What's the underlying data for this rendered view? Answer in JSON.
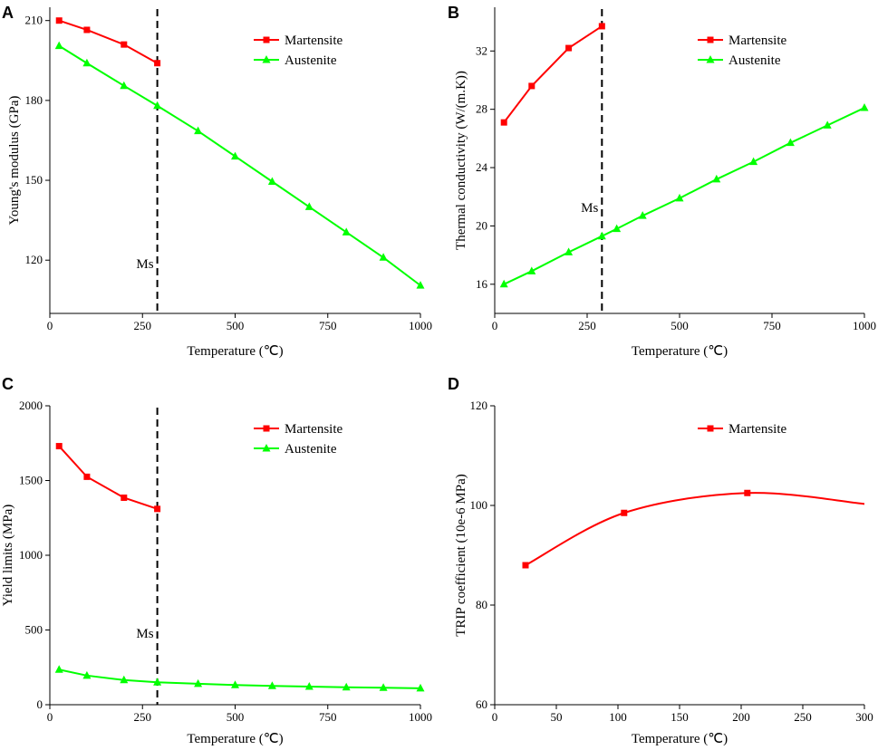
{
  "chart_data": [
    {
      "panel": "A",
      "type": "line",
      "xlabel": "Temperature (℃)",
      "ylabel": "Young's modulus (GPa)",
      "xlim": [
        0,
        1000
      ],
      "ylim": [
        100,
        215
      ],
      "xticks": [
        0,
        250,
        500,
        750,
        1000
      ],
      "yticks": [
        120,
        150,
        180,
        210
      ],
      "grid": false,
      "legend": "top-right",
      "marker_line": {
        "x": 290,
        "label": "Ms"
      },
      "series": [
        {
          "name": "Martensite",
          "color": "#ff0000",
          "marker": "square",
          "smooth": false,
          "x": [
            25,
            100,
            200,
            290
          ],
          "y": [
            210,
            206.5,
            201,
            194
          ]
        },
        {
          "name": "Austenite",
          "color": "#00ff00",
          "marker": "triangle",
          "smooth": false,
          "x": [
            25,
            100,
            200,
            290,
            400,
            500,
            600,
            700,
            800,
            900,
            1000
          ],
          "y": [
            200.5,
            194,
            185.5,
            178,
            168.5,
            159,
            149.5,
            140,
            130.5,
            121,
            110.5
          ]
        }
      ]
    },
    {
      "panel": "B",
      "type": "line",
      "xlabel": "Temperature (℃)",
      "ylabel": "Thermal conductivity (W/(m.K))",
      "xlim": [
        0,
        1000
      ],
      "ylim": [
        14,
        35
      ],
      "xticks": [
        0,
        250,
        500,
        750,
        1000
      ],
      "yticks": [
        16,
        20,
        24,
        28,
        32
      ],
      "grid": false,
      "legend": "top-right",
      "marker_line": {
        "x": 290,
        "label": "Ms"
      },
      "series": [
        {
          "name": "Martensite",
          "color": "#ff0000",
          "marker": "square",
          "smooth": false,
          "x": [
            25,
            100,
            200,
            290
          ],
          "y": [
            27.1,
            29.6,
            32.2,
            33.7
          ]
        },
        {
          "name": "Austenite",
          "color": "#00ff00",
          "marker": "triangle",
          "smooth": false,
          "x": [
            25,
            100,
            200,
            290,
            330,
            400,
            500,
            600,
            700,
            800,
            900,
            1000
          ],
          "y": [
            16.0,
            16.9,
            18.2,
            19.3,
            19.8,
            20.7,
            21.9,
            23.2,
            24.4,
            25.7,
            26.9,
            28.1
          ]
        }
      ]
    },
    {
      "panel": "C",
      "type": "line",
      "xlabel": "Temperature (℃)",
      "ylabel": "Yield limits (MPa)",
      "xlim": [
        0,
        1000
      ],
      "ylim": [
        0,
        2000
      ],
      "xticks": [
        0,
        250,
        500,
        750,
        1000
      ],
      "yticks": [
        0,
        500,
        1000,
        1500,
        2000
      ],
      "grid": false,
      "legend": "top-right",
      "marker_line": {
        "x": 290,
        "label": "Ms"
      },
      "series": [
        {
          "name": "Martensite",
          "color": "#ff0000",
          "marker": "square",
          "smooth": false,
          "x": [
            25,
            100,
            200,
            290
          ],
          "y": [
            1730,
            1525,
            1385,
            1310
          ]
        },
        {
          "name": "Austenite",
          "color": "#00ff00",
          "marker": "triangle",
          "smooth": false,
          "x": [
            25,
            100,
            200,
            290,
            400,
            500,
            600,
            700,
            800,
            900,
            1000
          ],
          "y": [
            235,
            195,
            165,
            150,
            140,
            132,
            126,
            121,
            117,
            114,
            110
          ]
        }
      ]
    },
    {
      "panel": "D",
      "type": "line",
      "xlabel": "Temperature (℃)",
      "ylabel": "TRIP coefficient (10e-6 MPa)",
      "xlim": [
        0,
        300
      ],
      "ylim": [
        60,
        120
      ],
      "xticks": [
        0,
        50,
        100,
        150,
        200,
        250,
        300
      ],
      "yticks": [
        60,
        80,
        100,
        120
      ],
      "grid": false,
      "legend": "top-right",
      "series": [
        {
          "name": "Martensite",
          "color": "#ff0000",
          "marker": "square",
          "smooth": true,
          "x": [
            25,
            105,
            205,
            300
          ],
          "y": [
            88,
            98.5,
            102.5,
            100.3
          ],
          "marker_count": 3
        }
      ]
    }
  ]
}
